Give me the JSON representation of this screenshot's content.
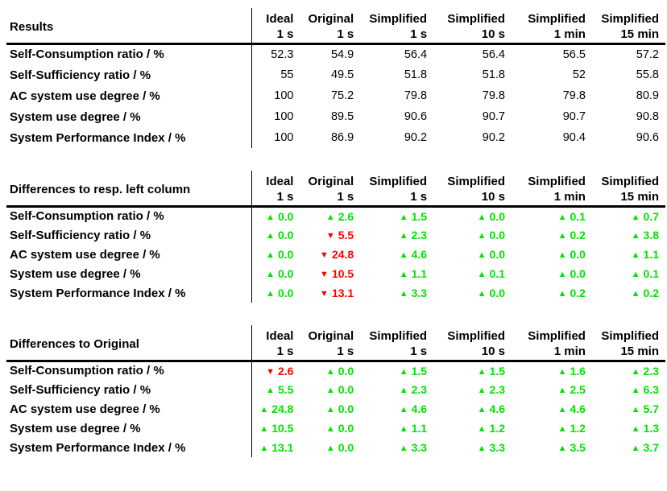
{
  "colors": {
    "positive": "#00e400",
    "negative": "#ff0000",
    "text": "#000000",
    "rule": "#000000"
  },
  "icons": {
    "up": "▲",
    "down": "▼"
  },
  "columns": [
    {
      "model": "Ideal",
      "step": "1 s"
    },
    {
      "model": "Original",
      "step": "1 s"
    },
    {
      "model": "Simplified",
      "step": "1 s"
    },
    {
      "model": "Simplified",
      "step": "10 s"
    },
    {
      "model": "Simplified",
      "step": "1 min"
    },
    {
      "model": "Simplified",
      "step": "15 min"
    }
  ],
  "tables": [
    {
      "title": "Results",
      "kind": "values",
      "rows": [
        {
          "label": "Self-Consumption ratio / %",
          "values": [
            "52.3",
            "54.9",
            "56.4",
            "56.4",
            "56.5",
            "57.2"
          ]
        },
        {
          "label": "Self-Sufficiency ratio / %",
          "values": [
            "55",
            "49.5",
            "51.8",
            "51.8",
            "52",
            "55.8"
          ]
        },
        {
          "label": "AC system use degree / %",
          "values": [
            "100",
            "75.2",
            "79.8",
            "79.8",
            "79.8",
            "80.9"
          ]
        },
        {
          "label": "System use degree / %",
          "values": [
            "100",
            "89.5",
            "90.6",
            "90.7",
            "90.7",
            "90.8"
          ]
        },
        {
          "label": "System Performance Index / %",
          "values": [
            "100",
            "86.9",
            "90.2",
            "90.2",
            "90.4",
            "90.6"
          ]
        }
      ]
    },
    {
      "title": "Differences to resp. left column",
      "kind": "diffs",
      "rows": [
        {
          "label": "Self-Consumption ratio / %",
          "values": [
            {
              "dir": "up",
              "v": "0.0"
            },
            {
              "dir": "up",
              "v": "2.6"
            },
            {
              "dir": "up",
              "v": "1.5"
            },
            {
              "dir": "up",
              "v": "0.0"
            },
            {
              "dir": "up",
              "v": "0.1"
            },
            {
              "dir": "up",
              "v": "0.7"
            }
          ]
        },
        {
          "label": "Self-Sufficiency ratio / %",
          "values": [
            {
              "dir": "up",
              "v": "0.0"
            },
            {
              "dir": "down",
              "v": "5.5"
            },
            {
              "dir": "up",
              "v": "2.3"
            },
            {
              "dir": "up",
              "v": "0.0"
            },
            {
              "dir": "up",
              "v": "0.2"
            },
            {
              "dir": "up",
              "v": "3.8"
            }
          ]
        },
        {
          "label": "AC system use degree / %",
          "values": [
            {
              "dir": "up",
              "v": "0.0"
            },
            {
              "dir": "down",
              "v": "24.8"
            },
            {
              "dir": "up",
              "v": "4.6"
            },
            {
              "dir": "up",
              "v": "0.0"
            },
            {
              "dir": "up",
              "v": "0.0"
            },
            {
              "dir": "up",
              "v": "1.1"
            }
          ]
        },
        {
          "label": "System use degree / %",
          "values": [
            {
              "dir": "up",
              "v": "0.0"
            },
            {
              "dir": "down",
              "v": "10.5"
            },
            {
              "dir": "up",
              "v": "1.1"
            },
            {
              "dir": "up",
              "v": "0.1"
            },
            {
              "dir": "up",
              "v": "0.0"
            },
            {
              "dir": "up",
              "v": "0.1"
            }
          ]
        },
        {
          "label": "System Performance Index / %",
          "values": [
            {
              "dir": "up",
              "v": "0.0"
            },
            {
              "dir": "down",
              "v": "13.1"
            },
            {
              "dir": "up",
              "v": "3.3"
            },
            {
              "dir": "up",
              "v": "0.0"
            },
            {
              "dir": "up",
              "v": "0.2"
            },
            {
              "dir": "up",
              "v": "0.2"
            }
          ]
        }
      ]
    },
    {
      "title": "Differences to Original",
      "kind": "diffs",
      "rows": [
        {
          "label": "Self-Consumption ratio / %",
          "values": [
            {
              "dir": "down",
              "v": "2.6"
            },
            {
              "dir": "up",
              "v": "0.0"
            },
            {
              "dir": "up",
              "v": "1.5"
            },
            {
              "dir": "up",
              "v": "1.5"
            },
            {
              "dir": "up",
              "v": "1.6"
            },
            {
              "dir": "up",
              "v": "2.3"
            }
          ]
        },
        {
          "label": "Self-Sufficiency ratio / %",
          "values": [
            {
              "dir": "up",
              "v": "5.5"
            },
            {
              "dir": "up",
              "v": "0.0"
            },
            {
              "dir": "up",
              "v": "2.3"
            },
            {
              "dir": "up",
              "v": "2.3"
            },
            {
              "dir": "up",
              "v": "2.5"
            },
            {
              "dir": "up",
              "v": "6.3"
            }
          ]
        },
        {
          "label": "AC system use degree / %",
          "values": [
            {
              "dir": "up",
              "v": "24.8"
            },
            {
              "dir": "up",
              "v": "0.0"
            },
            {
              "dir": "up",
              "v": "4.6"
            },
            {
              "dir": "up",
              "v": "4.6"
            },
            {
              "dir": "up",
              "v": "4.6"
            },
            {
              "dir": "up",
              "v": "5.7"
            }
          ]
        },
        {
          "label": "System use degree / %",
          "values": [
            {
              "dir": "up",
              "v": "10.5"
            },
            {
              "dir": "up",
              "v": "0.0"
            },
            {
              "dir": "up",
              "v": "1.1"
            },
            {
              "dir": "up",
              "v": "1.2"
            },
            {
              "dir": "up",
              "v": "1.2"
            },
            {
              "dir": "up",
              "v": "1.3"
            }
          ]
        },
        {
          "label": "System Performance Index / %",
          "values": [
            {
              "dir": "up",
              "v": "13.1"
            },
            {
              "dir": "up",
              "v": "0.0"
            },
            {
              "dir": "up",
              "v": "3.3"
            },
            {
              "dir": "up",
              "v": "3.3"
            },
            {
              "dir": "up",
              "v": "3.5"
            },
            {
              "dir": "up",
              "v": "3.7"
            }
          ]
        }
      ]
    }
  ]
}
